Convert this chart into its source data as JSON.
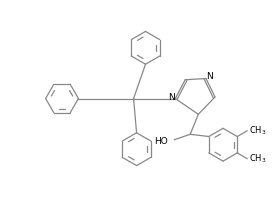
{
  "background_color": "#ffffff",
  "line_color": "#888888",
  "text_color": "#000000",
  "figsize": [
    2.8,
    2.14
  ],
  "dpi": 100,
  "lw": 0.9,
  "benz_r": 0.55,
  "imid_r": 0.45,
  "xlim": [
    0,
    9.33
  ],
  "ylim": [
    0,
    7.13
  ]
}
